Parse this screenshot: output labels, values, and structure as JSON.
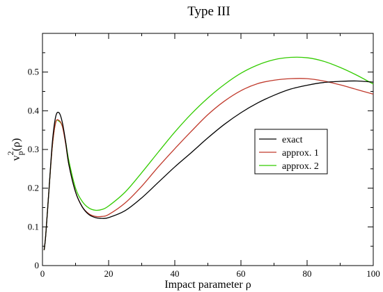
{
  "chart_data": {
    "type": "line",
    "title": "Type III",
    "xlabel": "Impact parameter ρ",
    "ylabel_main": "v",
    "ylabel_sub": "p",
    "ylabel_sup": "2",
    "ylabel_tail": "(ρ)",
    "xlim": [
      0,
      100
    ],
    "ylim": [
      0,
      0.6
    ],
    "xticks": [
      0,
      20,
      40,
      60,
      80,
      100
    ],
    "yticks": [
      0,
      0.1,
      0.2,
      0.3,
      0.4,
      0.5
    ],
    "ytick_labels": [
      "0",
      "0.1",
      "0.2",
      "0.3",
      "0.4",
      "0.5"
    ],
    "grid": false,
    "legend_position": "center-right",
    "series": [
      {
        "name": "exact",
        "color": "#000000",
        "x": [
          0.5,
          1,
          2,
          3,
          4,
          5,
          6,
          7,
          8,
          10,
          12,
          14,
          16,
          18,
          20,
          25,
          30,
          35,
          40,
          45,
          50,
          55,
          60,
          65,
          70,
          75,
          80,
          85,
          90,
          95,
          100
        ],
        "y": [
          0.04,
          0.08,
          0.2,
          0.32,
          0.385,
          0.395,
          0.37,
          0.32,
          0.26,
          0.19,
          0.152,
          0.132,
          0.124,
          0.122,
          0.124,
          0.142,
          0.175,
          0.215,
          0.255,
          0.292,
          0.33,
          0.365,
          0.395,
          0.42,
          0.44,
          0.456,
          0.466,
          0.473,
          0.476,
          0.477,
          0.474
        ]
      },
      {
        "name": "approx. 1",
        "color": "#c0392b",
        "x": [
          0.5,
          1,
          2,
          3,
          4,
          5,
          6,
          7,
          8,
          10,
          12,
          14,
          16,
          18,
          20,
          25,
          30,
          35,
          40,
          45,
          50,
          55,
          60,
          65,
          70,
          75,
          80,
          85,
          90,
          95,
          100
        ],
        "y": [
          0.04,
          0.08,
          0.2,
          0.31,
          0.37,
          0.375,
          0.36,
          0.315,
          0.26,
          0.19,
          0.152,
          0.134,
          0.127,
          0.127,
          0.132,
          0.162,
          0.205,
          0.255,
          0.302,
          0.347,
          0.39,
          0.425,
          0.452,
          0.47,
          0.479,
          0.483,
          0.483,
          0.477,
          0.467,
          0.455,
          0.443
        ]
      },
      {
        "name": "approx. 2",
        "color": "#33cc00",
        "x": [
          0.5,
          1,
          2,
          3,
          4,
          5,
          6,
          7,
          8,
          10,
          12,
          14,
          16,
          18,
          20,
          25,
          30,
          35,
          40,
          45,
          50,
          55,
          60,
          65,
          70,
          75,
          80,
          85,
          90,
          95,
          100
        ],
        "y": [
          0.04,
          0.08,
          0.2,
          0.31,
          0.37,
          0.373,
          0.36,
          0.32,
          0.27,
          0.2,
          0.166,
          0.149,
          0.143,
          0.145,
          0.154,
          0.19,
          0.24,
          0.293,
          0.345,
          0.392,
          0.433,
          0.468,
          0.497,
          0.518,
          0.532,
          0.538,
          0.537,
          0.528,
          0.512,
          0.492,
          0.469
        ]
      }
    ]
  }
}
